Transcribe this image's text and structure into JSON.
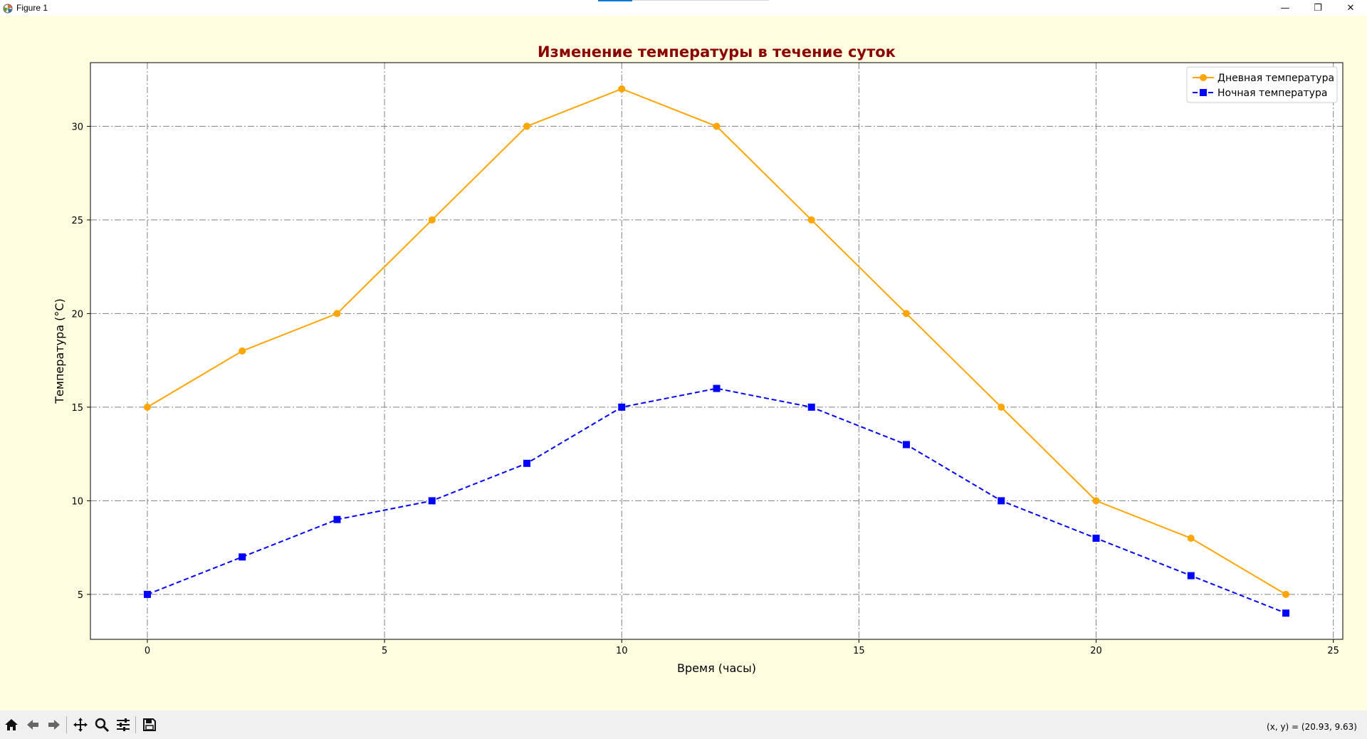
{
  "window": {
    "title": "Figure 1",
    "minimize": "—",
    "restore": "❐",
    "close": "✕"
  },
  "toolbar": {
    "items": [
      "home-icon",
      "back-arrow-icon",
      "forward-arrow-icon",
      "pan-icon",
      "zoom-icon",
      "configure-subplots-icon",
      "save-icon"
    ],
    "coords": "(x, y) = (20.93, 9.63)"
  },
  "colors": {
    "figure_bg": "#fffde0",
    "title": "#8b0000",
    "day_series": "#ffa500",
    "night_series": "#0000ff",
    "grid": "#808080"
  },
  "chart_data": {
    "type": "line",
    "title": "Изменение температуры в течение суток",
    "xlabel": "Время (часы)",
    "ylabel": "Температура (°C)",
    "xlim": [
      -1.2,
      25.2
    ],
    "ylim": [
      2.6,
      33.4
    ],
    "xticks": [
      0,
      5,
      10,
      15,
      20,
      25
    ],
    "yticks": [
      5,
      10,
      15,
      20,
      25,
      30
    ],
    "grid": true,
    "legend_position": "top-right",
    "x": [
      0,
      2,
      4,
      6,
      8,
      10,
      12,
      14,
      16,
      18,
      20,
      22,
      24
    ],
    "series": [
      {
        "name": "Дневная температура",
        "marker": "circle",
        "line": "solid",
        "color": "#ffa500",
        "values": [
          15,
          18,
          20,
          25,
          30,
          32,
          30,
          25,
          20,
          15,
          10,
          8,
          5
        ]
      },
      {
        "name": "Ночная температура",
        "marker": "square",
        "line": "dashed",
        "color": "#0000ff",
        "values": [
          5,
          7,
          9,
          10,
          12,
          15,
          16,
          15,
          13,
          10,
          8,
          6,
          4
        ]
      }
    ]
  }
}
